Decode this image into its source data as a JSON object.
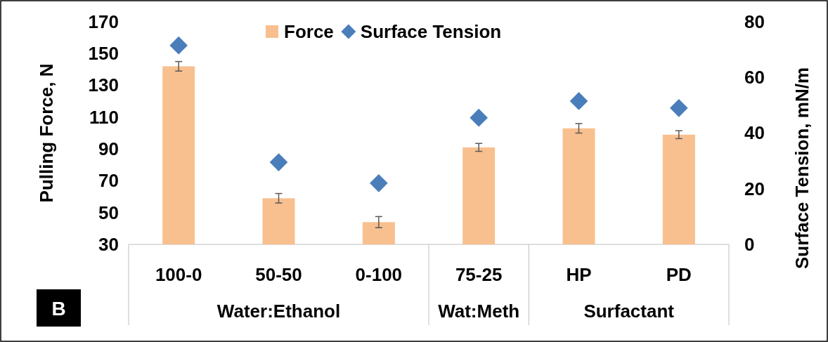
{
  "chart_data": {
    "type": "bar",
    "categories": [
      "100-0",
      "50-50",
      "0-100",
      "75-25",
      "HP",
      "PD"
    ],
    "series": [
      {
        "name": "Force",
        "color": "#f8c08f",
        "values": [
          142,
          59,
          44,
          91,
          103,
          99
        ],
        "errors": [
          3,
          3,
          3.5,
          2.5,
          3,
          2.5
        ]
      },
      {
        "name": "Surface Tension",
        "type": "scatter",
        "axis": "y2",
        "color": "#4a7ebb",
        "marker": "diamond",
        "values": [
          71.5,
          29.5,
          22,
          45.5,
          51.5,
          49
        ]
      }
    ],
    "ylabel": "Pulling Force, N",
    "y2label": "Surface Tension, mN/m",
    "ylim": [
      30,
      170
    ],
    "yticks": [
      30,
      50,
      70,
      90,
      110,
      130,
      150,
      170
    ],
    "y2lim": [
      0,
      80
    ],
    "y2ticks": [
      0,
      20,
      40,
      60,
      80
    ],
    "annotations": [
      "Water:Ethanol",
      "Wat:Meth",
      "Surfactant",
      "B"
    ],
    "legend": "top",
    "grid": false
  }
}
